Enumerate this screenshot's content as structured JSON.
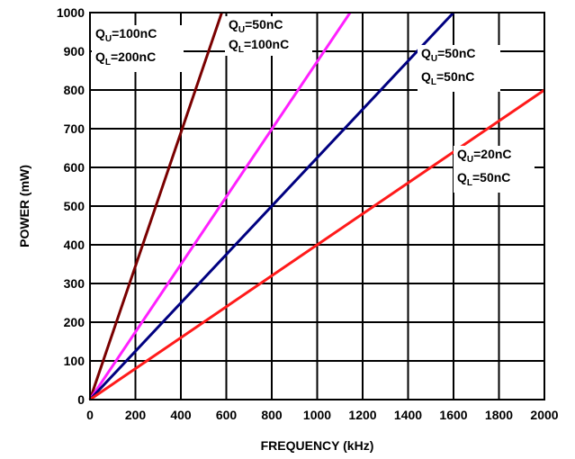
{
  "chart_data": {
    "type": "line",
    "xlabel": "FREQUENCY (kHz)",
    "ylabel": "POWER (mW)",
    "xlim": [
      0,
      2000
    ],
    "ylim": [
      0,
      1000
    ],
    "x_ticks": [
      0,
      200,
      400,
      600,
      800,
      1000,
      1200,
      1400,
      1600,
      1800,
      2000
    ],
    "y_ticks": [
      0,
      100,
      200,
      300,
      400,
      500,
      600,
      700,
      800,
      900,
      1000
    ],
    "grid": true,
    "series": [
      {
        "color": "#7a0000",
        "x": [
          0,
          580
        ],
        "y": [
          0,
          1000
        ],
        "annotation": [
          {
            "main": "Q",
            "sub": "U",
            "rest": "=100nC"
          },
          {
            "main": "Q",
            "sub": "L",
            "rest": "=200nC"
          }
        ]
      },
      {
        "color": "#ff20ff",
        "x": [
          0,
          1145
        ],
        "y": [
          0,
          1000
        ],
        "annotation": [
          {
            "main": "Q",
            "sub": "U",
            "rest": "=50nC"
          },
          {
            "main": "Q",
            "sub": "L",
            "rest": "=100nC"
          }
        ]
      },
      {
        "color": "#000080",
        "x": [
          0,
          1600
        ],
        "y": [
          0,
          1000
        ],
        "annotation": [
          {
            "main": "Q",
            "sub": "U",
            "rest": "=50nC"
          },
          {
            "main": "Q",
            "sub": "L",
            "rest": "=50nC"
          }
        ]
      },
      {
        "color": "#ff1a1a",
        "x": [
          0,
          2000
        ],
        "y": [
          0,
          800
        ],
        "annotation": [
          {
            "main": "Q",
            "sub": "U",
            "rest": "=20nC"
          },
          {
            "main": "Q",
            "sub": "L",
            "rest": "=50nC"
          }
        ]
      }
    ]
  }
}
